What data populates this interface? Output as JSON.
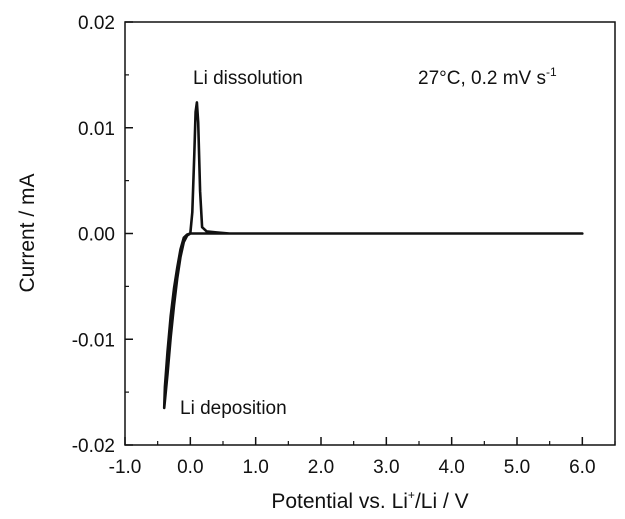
{
  "chart_data": {
    "type": "line",
    "title": "",
    "xlabel": {
      "prefix": "Potential vs. Li",
      "sup": "+",
      "suffix": "/Li / V"
    },
    "ylabel": "Current / mA",
    "xlim": [
      -1.0,
      6.5
    ],
    "ylim": [
      -0.02,
      0.02
    ],
    "x_ticks": [
      -1.0,
      0.0,
      1.0,
      2.0,
      3.0,
      4.0,
      5.0,
      6.0
    ],
    "x_tick_labels": [
      "-1.0",
      "0.0",
      "1.0",
      "2.0",
      "3.0",
      "4.0",
      "5.0",
      "6.0"
    ],
    "y_ticks": [
      -0.02,
      -0.01,
      0.0,
      0.01,
      0.02
    ],
    "y_tick_labels": [
      "-0.02",
      "-0.01",
      "0.00",
      "0.01",
      "0.02"
    ],
    "grid": false,
    "annotations": {
      "dissolution": "Li dissolution",
      "deposition": "Li deposition",
      "condition_main": "27°C, 0.2 mV s",
      "condition_sup": "-1"
    },
    "series": [
      {
        "points": [
          [
            6.0,
            0.0
          ],
          [
            5.0,
            0.0
          ],
          [
            4.0,
            0.0
          ],
          [
            3.0,
            0.0
          ],
          [
            2.0,
            0.0
          ],
          [
            1.0,
            0.0
          ],
          [
            0.5,
            0.0
          ],
          [
            0.2,
            0.0
          ],
          [
            0.0,
            0.0
          ],
          [
            -0.05,
            -0.0002
          ],
          [
            -0.1,
            -0.0008
          ],
          [
            -0.15,
            -0.0022
          ],
          [
            -0.2,
            -0.0042
          ],
          [
            -0.25,
            -0.0068
          ],
          [
            -0.3,
            -0.0098
          ],
          [
            -0.35,
            -0.0133
          ],
          [
            -0.4,
            -0.0165
          ],
          [
            -0.39,
            -0.0145
          ],
          [
            -0.35,
            -0.0112
          ],
          [
            -0.3,
            -0.0078
          ],
          [
            -0.25,
            -0.0052
          ],
          [
            -0.2,
            -0.0032
          ],
          [
            -0.15,
            -0.0015
          ],
          [
            -0.1,
            -0.0004
          ],
          [
            -0.05,
            -0.0001
          ],
          [
            0.0,
            0.0
          ],
          [
            0.03,
            0.002
          ],
          [
            0.06,
            0.0075
          ],
          [
            0.08,
            0.0115
          ],
          [
            0.1,
            0.0124
          ],
          [
            0.12,
            0.0105
          ],
          [
            0.15,
            0.004
          ],
          [
            0.18,
            0.0006
          ],
          [
            0.25,
            0.0002
          ],
          [
            0.4,
            0.0001
          ],
          [
            0.6,
            0.0
          ],
          [
            1.0,
            0.0
          ],
          [
            2.0,
            0.0
          ],
          [
            3.0,
            0.0
          ],
          [
            4.0,
            0.0
          ],
          [
            5.0,
            0.0
          ],
          [
            6.0,
            0.0
          ]
        ]
      }
    ]
  }
}
